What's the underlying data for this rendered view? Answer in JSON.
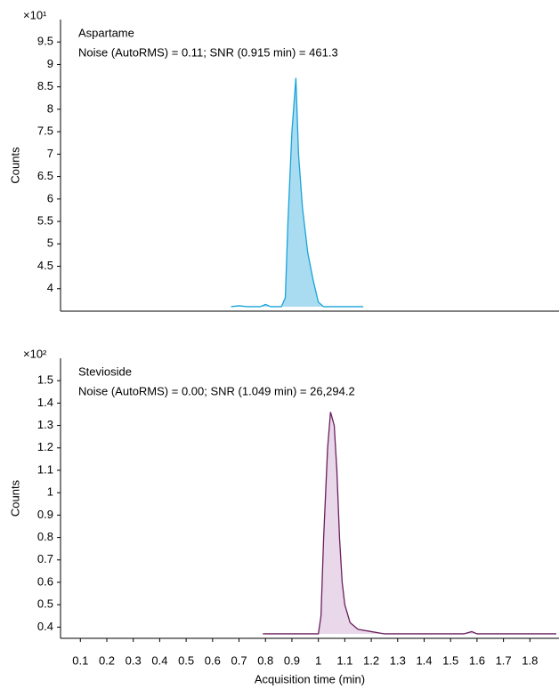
{
  "chart_data": [
    {
      "type": "line",
      "title": "Aspartame",
      "subtitle": "Noise (AutoRMS) = 0.11; SNR (0.915 min) = 461.3",
      "y_label": "Counts",
      "y_multiplier": "×10¹",
      "xlim": [
        0.025,
        1.91
      ],
      "ylim": [
        3.5,
        10
      ],
      "yticks": [
        4,
        4.5,
        5,
        5.5,
        6,
        6.5,
        7,
        7.5,
        8,
        8.5,
        9,
        9.5
      ],
      "series": [
        {
          "color": "#1aa3d9",
          "fill": "#a9dcf1",
          "x": [
            0.67,
            0.7,
            0.73,
            0.78,
            0.8,
            0.82,
            0.86,
            0.875,
            0.885,
            0.9,
            0.915,
            0.925,
            0.94,
            0.96,
            0.98,
            1.0,
            1.02,
            1.17
          ],
          "values": [
            3.6,
            3.62,
            3.6,
            3.6,
            3.65,
            3.6,
            3.6,
            3.8,
            5.5,
            7.5,
            8.7,
            7.0,
            5.8,
            4.8,
            4.2,
            3.7,
            3.6,
            3.6
          ]
        }
      ]
    },
    {
      "type": "line",
      "title": "Stevioside",
      "subtitle": "Noise (AutoRMS) = 0.00; SNR (1.049 min) = 26,294.2",
      "y_label": "Counts",
      "y_multiplier": "×10²",
      "x_label": "Acquisition time (min)",
      "xlim": [
        0.025,
        1.91
      ],
      "ylim": [
        0.35,
        1.6
      ],
      "xticks": [
        0.1,
        0.2,
        0.3,
        0.4,
        0.5,
        0.6,
        0.7,
        0.8,
        0.9,
        1,
        1.1,
        1.2,
        1.3,
        1.4,
        1.5,
        1.6,
        1.7,
        1.8
      ],
      "yticks": [
        0.4,
        0.5,
        0.6,
        0.7,
        0.8,
        0.9,
        1,
        1.1,
        1.2,
        1.3,
        1.4,
        1.5
      ],
      "series": [
        {
          "color": "#6b1f5e",
          "fill": "#e8d8ea",
          "x": [
            0.79,
            1.0,
            1.01,
            1.02,
            1.035,
            1.046,
            1.06,
            1.07,
            1.08,
            1.09,
            1.1,
            1.12,
            1.15,
            1.2,
            1.25,
            1.55,
            1.58,
            1.6,
            1.9
          ],
          "values": [
            0.37,
            0.37,
            0.45,
            0.8,
            1.2,
            1.36,
            1.3,
            1.1,
            0.8,
            0.6,
            0.5,
            0.42,
            0.39,
            0.38,
            0.37,
            0.37,
            0.38,
            0.37,
            0.37
          ]
        }
      ]
    }
  ]
}
